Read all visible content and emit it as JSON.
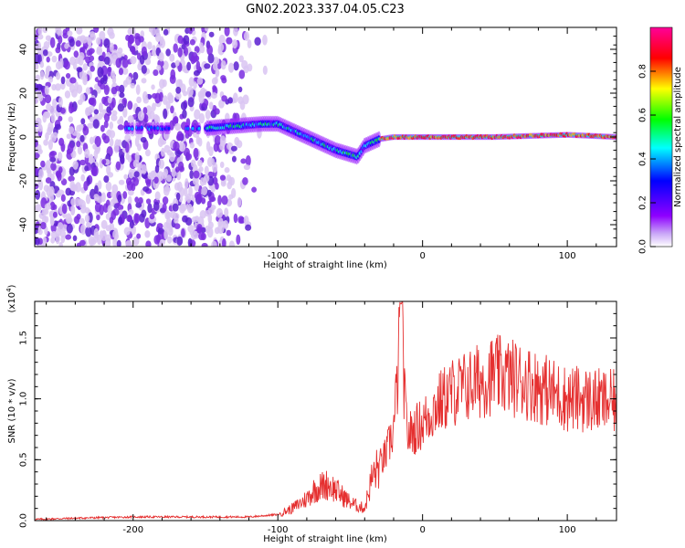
{
  "title": "GN02.2023.337.04.05.C23",
  "colors": {
    "line": "#e53030",
    "spectral_faint": "#d9c4f2",
    "spectral_mid": "#7a2be0",
    "spectral_low": "#5a1fd0"
  },
  "chart_data": [
    {
      "id": "spectrogram",
      "type": "heatmap",
      "xlabel": "Height of straight line (km)",
      "ylabel": "Frequency (Hz)",
      "xlim": [
        -268,
        134
      ],
      "ylim": [
        -50,
        50
      ],
      "xticks": [
        -200,
        -100,
        0,
        100
      ],
      "yticks": [
        -40,
        -20,
        0,
        20,
        40
      ],
      "tick_labels_x": [
        "-200",
        "-100",
        "0",
        "100"
      ],
      "tick_labels_y": [
        "-40",
        "-20",
        "0",
        "20",
        "40"
      ],
      "colorbar": {
        "label": "Normalized spectral amplitude",
        "range": [
          0,
          1
        ],
        "ticks": [
          "0.0",
          "0.2",
          "0.4",
          "0.6",
          "0.8"
        ],
        "colormap": [
          "#ffffff",
          "#8f00ff",
          "#0000ff",
          "#00ffff",
          "#00ff00",
          "#ffff00",
          "#ff0000",
          "#ff0099"
        ]
      },
      "ridge_freq_hz": [
        {
          "x": -200,
          "y": 4
        },
        {
          "x": -150,
          "y": 4
        },
        {
          "x": -130,
          "y": 5
        },
        {
          "x": -110,
          "y": 6
        },
        {
          "x": -100,
          "y": 6
        },
        {
          "x": -90,
          "y": 3
        },
        {
          "x": -80,
          "y": 0
        },
        {
          "x": -70,
          "y": -3
        },
        {
          "x": -60,
          "y": -6
        },
        {
          "x": -50,
          "y": -8
        },
        {
          "x": -45,
          "y": -9
        },
        {
          "x": -40,
          "y": -4
        },
        {
          "x": -30,
          "y": -1
        },
        {
          "x": -20,
          "y": 0
        },
        {
          "x": 0,
          "y": 0
        },
        {
          "x": 50,
          "y": 0
        },
        {
          "x": 100,
          "y": 1
        },
        {
          "x": 134,
          "y": 0
        }
      ]
    },
    {
      "id": "snr",
      "type": "line",
      "xlabel": "Height of straight line (km)",
      "ylabel": "SNR (10 * v/v)",
      "y_multiplier": "(x10",
      "y_multiplier_exp": "4",
      "y_multiplier_close": ")",
      "xlim": [
        -268,
        134
      ],
      "ylim": [
        0,
        1.8
      ],
      "xticks": [
        -200,
        -100,
        0,
        100
      ],
      "yticks": [
        0,
        0.5,
        1.0,
        1.5
      ],
      "tick_labels_x": [
        "-200",
        "-100",
        "0",
        "100"
      ],
      "tick_labels_y": [
        "0.0",
        "0.5",
        "1.0",
        "1.5"
      ],
      "series": [
        {
          "x": [
            -268,
            -240,
            -200,
            -160,
            -120,
            -100,
            -90,
            -80,
            -75,
            -70,
            -65,
            -60,
            -55,
            -50,
            -45,
            -40,
            -35,
            -30,
            -25,
            -20,
            -17,
            -15,
            -12,
            -10,
            -5,
            0,
            10,
            20,
            30,
            40,
            50,
            60,
            70,
            80,
            90,
            100,
            110,
            120,
            134
          ],
          "y": [
            0.01,
            0.02,
            0.03,
            0.03,
            0.03,
            0.05,
            0.1,
            0.18,
            0.25,
            0.28,
            0.3,
            0.25,
            0.2,
            0.15,
            0.12,
            0.1,
            0.35,
            0.45,
            0.55,
            0.75,
            1.2,
            1.78,
            0.9,
            0.7,
            0.75,
            0.8,
            0.95,
            1.05,
            1.1,
            1.15,
            1.2,
            1.18,
            1.15,
            1.1,
            1.05,
            1.0,
            1.0,
            0.98,
            0.97
          ]
        }
      ]
    }
  ]
}
